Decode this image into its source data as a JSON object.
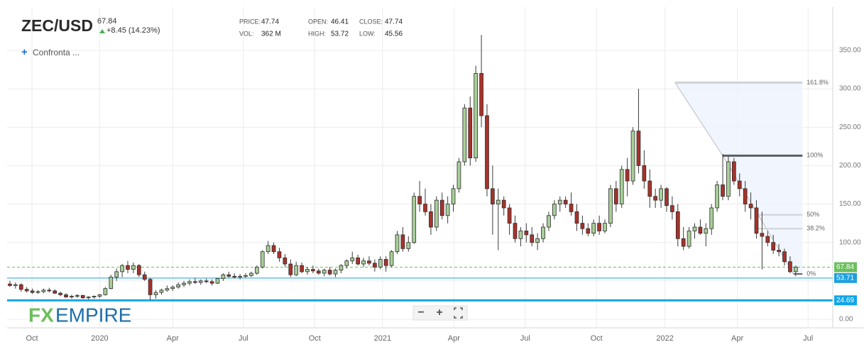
{
  "chart_data": {
    "type": "candlestick",
    "title": "ZEC/USD",
    "last_price": 67.84,
    "change": "+8.45 (14.23%)",
    "compare": "Confronta ...",
    "stats": [
      {
        "label": "PRICE:",
        "value": "47.74"
      },
      {
        "label": "VOL:",
        "value": "362 M"
      },
      {
        "label": "OPEN:",
        "value": "46.41"
      },
      {
        "label": "HIGH:",
        "value": "53.72"
      },
      {
        "label": "CLOSE:",
        "value": "47.74"
      },
      {
        "label": "LOW:",
        "value": "45.56"
      }
    ],
    "logo": [
      "FX",
      "EMPIRE"
    ],
    "up_color": "#a8cf98",
    "down_color": "#a8322a",
    "ylim": [
      0,
      390
    ],
    "yticks": [
      {
        "value": 0,
        "label": "0.00"
      },
      {
        "value": 50,
        "label": "50.00"
      },
      {
        "value": 100,
        "label": "100.00"
      },
      {
        "value": 150,
        "label": "150.00"
      },
      {
        "value": 200,
        "label": "200.00"
      },
      {
        "value": 250,
        "label": "250.00"
      },
      {
        "value": 300,
        "label": "300.00"
      },
      {
        "value": 350,
        "label": "350.00"
      }
    ],
    "xlim": [
      -0.5,
      146.6
    ],
    "xticks": [
      {
        "value": 3.93,
        "label": "Oct"
      },
      {
        "value": 16.0,
        "label": "2020"
      },
      {
        "value": 29.0,
        "label": "Apr"
      },
      {
        "value": 41.6,
        "label": "Jul"
      },
      {
        "value": 54.3,
        "label": "Oct"
      },
      {
        "value": 66.4,
        "label": "2021"
      },
      {
        "value": 79.1,
        "label": "Apr"
      },
      {
        "value": 91.8,
        "label": "Jul"
      },
      {
        "value": 104.5,
        "label": "Oct"
      },
      {
        "value": 116.7,
        "label": "2022"
      },
      {
        "value": 129.6,
        "label": "Apr"
      },
      {
        "value": 142.2,
        "label": "Jul"
      }
    ],
    "grid": true,
    "ohlc": [
      [
        46,
        50,
        42,
        44
      ],
      [
        44,
        48,
        40,
        45
      ],
      [
        45,
        47,
        36,
        39
      ],
      [
        39,
        42,
        35,
        37
      ],
      [
        37,
        40,
        33,
        35
      ],
      [
        35,
        38,
        33,
        36
      ],
      [
        36,
        40,
        34,
        38
      ],
      [
        38,
        41,
        35,
        37
      ],
      [
        37,
        39,
        33,
        34
      ],
      [
        34,
        36,
        30,
        32
      ],
      [
        32,
        34,
        28,
        29
      ],
      [
        29,
        32,
        27,
        30
      ],
      [
        30,
        33,
        28,
        31
      ],
      [
        31,
        32,
        27,
        28
      ],
      [
        28,
        30,
        26,
        29
      ],
      [
        29,
        31,
        27,
        30
      ],
      [
        30,
        33,
        28,
        32
      ],
      [
        32,
        42,
        31,
        40
      ],
      [
        40,
        58,
        39,
        55
      ],
      [
        55,
        66,
        50,
        62
      ],
      [
        62,
        72,
        55,
        70
      ],
      [
        70,
        76,
        60,
        65
      ],
      [
        65,
        74,
        60,
        70
      ],
      [
        70,
        72,
        55,
        58
      ],
      [
        58,
        62,
        50,
        52
      ],
      [
        52,
        54,
        25,
        32
      ],
      [
        32,
        38,
        27,
        35
      ],
      [
        35,
        40,
        32,
        38
      ],
      [
        38,
        44,
        36,
        40
      ],
      [
        40,
        44,
        37,
        42
      ],
      [
        42,
        48,
        40,
        45
      ],
      [
        45,
        50,
        42,
        47
      ],
      [
        47,
        52,
        44,
        49
      ],
      [
        49,
        54,
        46,
        48
      ],
      [
        48,
        52,
        45,
        50
      ],
      [
        50,
        53,
        47,
        49
      ],
      [
        49,
        52,
        44,
        47
      ],
      [
        47,
        54,
        46,
        53
      ],
      [
        53,
        60,
        50,
        58
      ],
      [
        58,
        62,
        54,
        56
      ],
      [
        56,
        60,
        53,
        55
      ],
      [
        55,
        59,
        52,
        56
      ],
      [
        56,
        60,
        54,
        57
      ],
      [
        57,
        62,
        55,
        60
      ],
      [
        60,
        70,
        58,
        68
      ],
      [
        68,
        90,
        66,
        88
      ],
      [
        88,
        102,
        85,
        96
      ],
      [
        96,
        100,
        85,
        88
      ],
      [
        88,
        93,
        75,
        80
      ],
      [
        80,
        85,
        68,
        72
      ],
      [
        72,
        78,
        55,
        58
      ],
      [
        58,
        75,
        56,
        70
      ],
      [
        70,
        74,
        60,
        62
      ],
      [
        62,
        68,
        58,
        65
      ],
      [
        65,
        70,
        60,
        63
      ],
      [
        63,
        66,
        58,
        60
      ],
      [
        60,
        66,
        56,
        64
      ],
      [
        64,
        68,
        57,
        59
      ],
      [
        59,
        66,
        55,
        64
      ],
      [
        64,
        72,
        60,
        70
      ],
      [
        70,
        78,
        66,
        76
      ],
      [
        76,
        88,
        72,
        80
      ],
      [
        80,
        84,
        70,
        72
      ],
      [
        72,
        80,
        68,
        76
      ],
      [
        76,
        82,
        70,
        73
      ],
      [
        73,
        78,
        62,
        68
      ],
      [
        68,
        82,
        65,
        78
      ],
      [
        78,
        82,
        62,
        70
      ],
      [
        70,
        90,
        68,
        88
      ],
      [
        88,
        115,
        85,
        110
      ],
      [
        110,
        120,
        88,
        92
      ],
      [
        92,
        108,
        88,
        100
      ],
      [
        100,
        165,
        98,
        160
      ],
      [
        160,
        180,
        140,
        150
      ],
      [
        150,
        170,
        135,
        140
      ],
      [
        140,
        150,
        110,
        120
      ],
      [
        120,
        160,
        115,
        155
      ],
      [
        155,
        165,
        130,
        135
      ],
      [
        135,
        160,
        125,
        150
      ],
      [
        150,
        175,
        140,
        170
      ],
      [
        170,
        210,
        165,
        205
      ],
      [
        205,
        280,
        200,
        275
      ],
      [
        275,
        290,
        200,
        210
      ],
      [
        210,
        330,
        205,
        320
      ],
      [
        320,
        370,
        250,
        265
      ],
      [
        265,
        280,
        160,
        170
      ],
      [
        170,
        200,
        110,
        150
      ],
      [
        150,
        170,
        90,
        155
      ],
      [
        155,
        160,
        135,
        145
      ],
      [
        145,
        150,
        110,
        125
      ],
      [
        125,
        135,
        100,
        105
      ],
      [
        105,
        120,
        95,
        115
      ],
      [
        115,
        125,
        100,
        110
      ],
      [
        110,
        120,
        95,
        100
      ],
      [
        100,
        112,
        90,
        105
      ],
      [
        105,
        125,
        100,
        120
      ],
      [
        120,
        140,
        115,
        135
      ],
      [
        135,
        155,
        130,
        150
      ],
      [
        150,
        160,
        140,
        155
      ],
      [
        155,
        160,
        145,
        150
      ],
      [
        150,
        165,
        135,
        140
      ],
      [
        140,
        150,
        115,
        125
      ],
      [
        125,
        135,
        110,
        118
      ],
      [
        118,
        125,
        108,
        112
      ],
      [
        112,
        130,
        108,
        125
      ],
      [
        125,
        135,
        110,
        115
      ],
      [
        115,
        130,
        112,
        125
      ],
      [
        125,
        175,
        120,
        170
      ],
      [
        170,
        180,
        140,
        150
      ],
      [
        150,
        200,
        145,
        195
      ],
      [
        195,
        210,
        160,
        180
      ],
      [
        180,
        250,
        175,
        245
      ],
      [
        245,
        300,
        190,
        200
      ],
      [
        200,
        220,
        170,
        180
      ],
      [
        180,
        195,
        145,
        160
      ],
      [
        160,
        170,
        145,
        155
      ],
      [
        155,
        175,
        145,
        170
      ],
      [
        170,
        172,
        140,
        148
      ],
      [
        148,
        160,
        130,
        140
      ],
      [
        140,
        150,
        95,
        105
      ],
      [
        105,
        120,
        90,
        95
      ],
      [
        95,
        120,
        92,
        115
      ],
      [
        115,
        125,
        105,
        120
      ],
      [
        120,
        130,
        110,
        112
      ],
      [
        112,
        125,
        95,
        118
      ],
      [
        118,
        150,
        110,
        145
      ],
      [
        145,
        180,
        140,
        175
      ],
      [
        175,
        215,
        155,
        160
      ],
      [
        160,
        212,
        155,
        205
      ],
      [
        205,
        210,
        175,
        180
      ],
      [
        180,
        190,
        160,
        170
      ],
      [
        170,
        180,
        140,
        150
      ],
      [
        150,
        165,
        130,
        145
      ],
      [
        145,
        155,
        105,
        112
      ],
      [
        112,
        140,
        65,
        108
      ],
      [
        108,
        115,
        95,
        100
      ],
      [
        100,
        110,
        85,
        90
      ],
      [
        90,
        98,
        82,
        88
      ],
      [
        88,
        92,
        70,
        75
      ],
      [
        75,
        82,
        60,
        62
      ],
      [
        62,
        70,
        56,
        68
      ]
    ],
    "price_lines": [
      {
        "value": 67.84,
        "label": "67.84",
        "color": "#6cbf5e",
        "style": "dashed"
      },
      {
        "value": 53.71,
        "label": "53.71",
        "color": "#1ea0e0",
        "style": "solid"
      },
      {
        "value": 24.69,
        "label": "24.69",
        "color": "#12a6e6",
        "style": "thick"
      }
    ],
    "fibonacci": [
      {
        "label": "161.8%",
        "value": 308,
        "color": "#cfd3d8"
      },
      {
        "label": "100%",
        "value": 213,
        "color": "#5b5e63"
      },
      {
        "label": "50%",
        "value": 136,
        "color": "#cfd3d8"
      },
      {
        "label": "38.2%",
        "value": 118,
        "color": "#cfd3d8"
      },
      {
        "label": "0%",
        "value": 59,
        "color": "#5b5e63"
      }
    ]
  }
}
